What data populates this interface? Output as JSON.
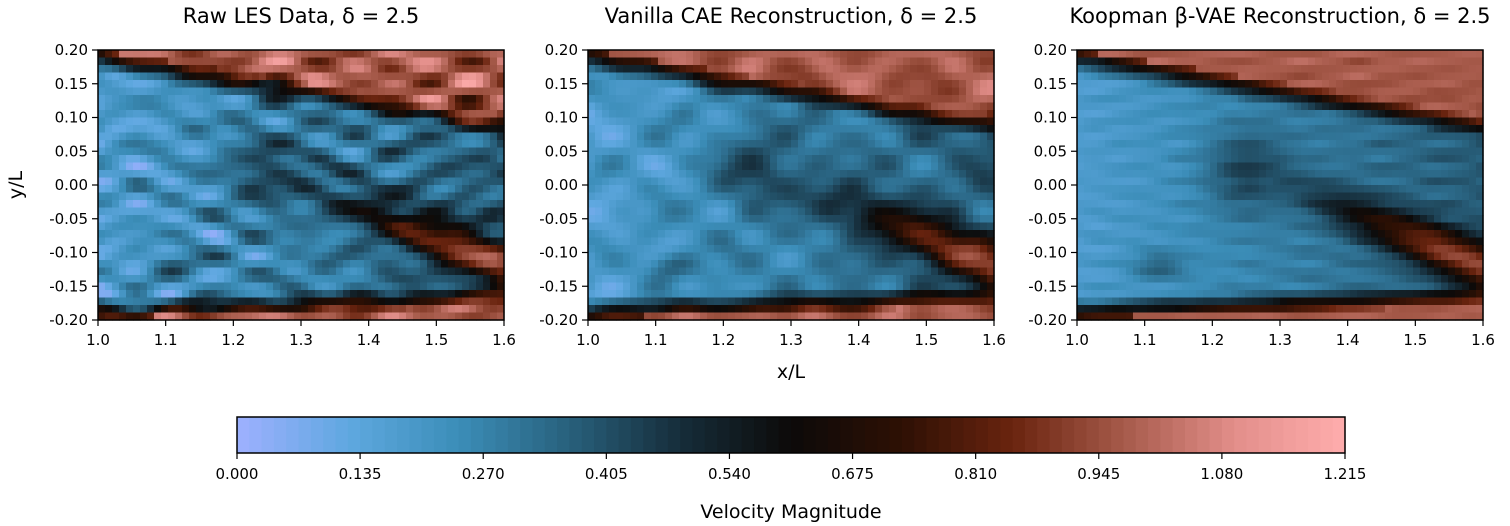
{
  "chart_data": [
    {
      "type": "heatmap",
      "title": "Raw LES Data, δ = 2.5",
      "xlabel": "",
      "ylabel": "y/L",
      "xlim": [
        1.0,
        1.6
      ],
      "ylim": [
        -0.2,
        0.2
      ],
      "x_ticks": [
        "1.0",
        "1.1",
        "1.2",
        "1.3",
        "1.4",
        "1.5",
        "1.6"
      ],
      "y_ticks": [
        "0.20",
        "0.15",
        "0.10",
        "0.05",
        "0.00",
        "-0.05",
        "-0.10",
        "-0.15",
        "-0.20"
      ],
      "texture": "sharp"
    },
    {
      "type": "heatmap",
      "title": "Vanilla CAE Reconstruction, δ = 2.5",
      "xlabel": "",
      "ylabel": "",
      "xlim": [
        1.0,
        1.6
      ],
      "ylim": [
        -0.2,
        0.2
      ],
      "x_ticks": [
        "1.0",
        "1.1",
        "1.2",
        "1.3",
        "1.4",
        "1.5",
        "1.6"
      ],
      "y_ticks": [
        "0.20",
        "0.15",
        "0.10",
        "0.05",
        "0.00",
        "-0.05",
        "-0.10",
        "-0.15",
        "-0.20"
      ],
      "texture": "medium"
    },
    {
      "type": "heatmap",
      "title": "Koopman β-VAE Reconstruction, δ = 2.5",
      "xlabel": "",
      "ylabel": "",
      "xlim": [
        1.0,
        1.6
      ],
      "ylim": [
        -0.2,
        0.2
      ],
      "x_ticks": [
        "1.0",
        "1.1",
        "1.2",
        "1.3",
        "1.4",
        "1.5",
        "1.6"
      ],
      "y_ticks": [
        "0.20",
        "0.15",
        "0.10",
        "0.05",
        "0.00",
        "-0.05",
        "-0.10",
        "-0.15",
        "-0.20"
      ],
      "texture": "smooth"
    }
  ],
  "shared_xlabel": "x/L",
  "colorbar": {
    "label": "Velocity Magnitude",
    "ticks": [
      "0.000",
      "0.135",
      "0.270",
      "0.405",
      "0.540",
      "0.675",
      "0.810",
      "0.945",
      "1.080",
      "1.215"
    ],
    "range": [
      0,
      1.215
    ],
    "colormap": "berlin",
    "colors": [
      "#9eb0ff",
      "#5fa8e0",
      "#3b8db8",
      "#28607c",
      "#162d3a",
      "#0c0a09",
      "#2e1004",
      "#6a240f",
      "#a65a4a",
      "#e28e8a",
      "#ffadad"
    ]
  }
}
